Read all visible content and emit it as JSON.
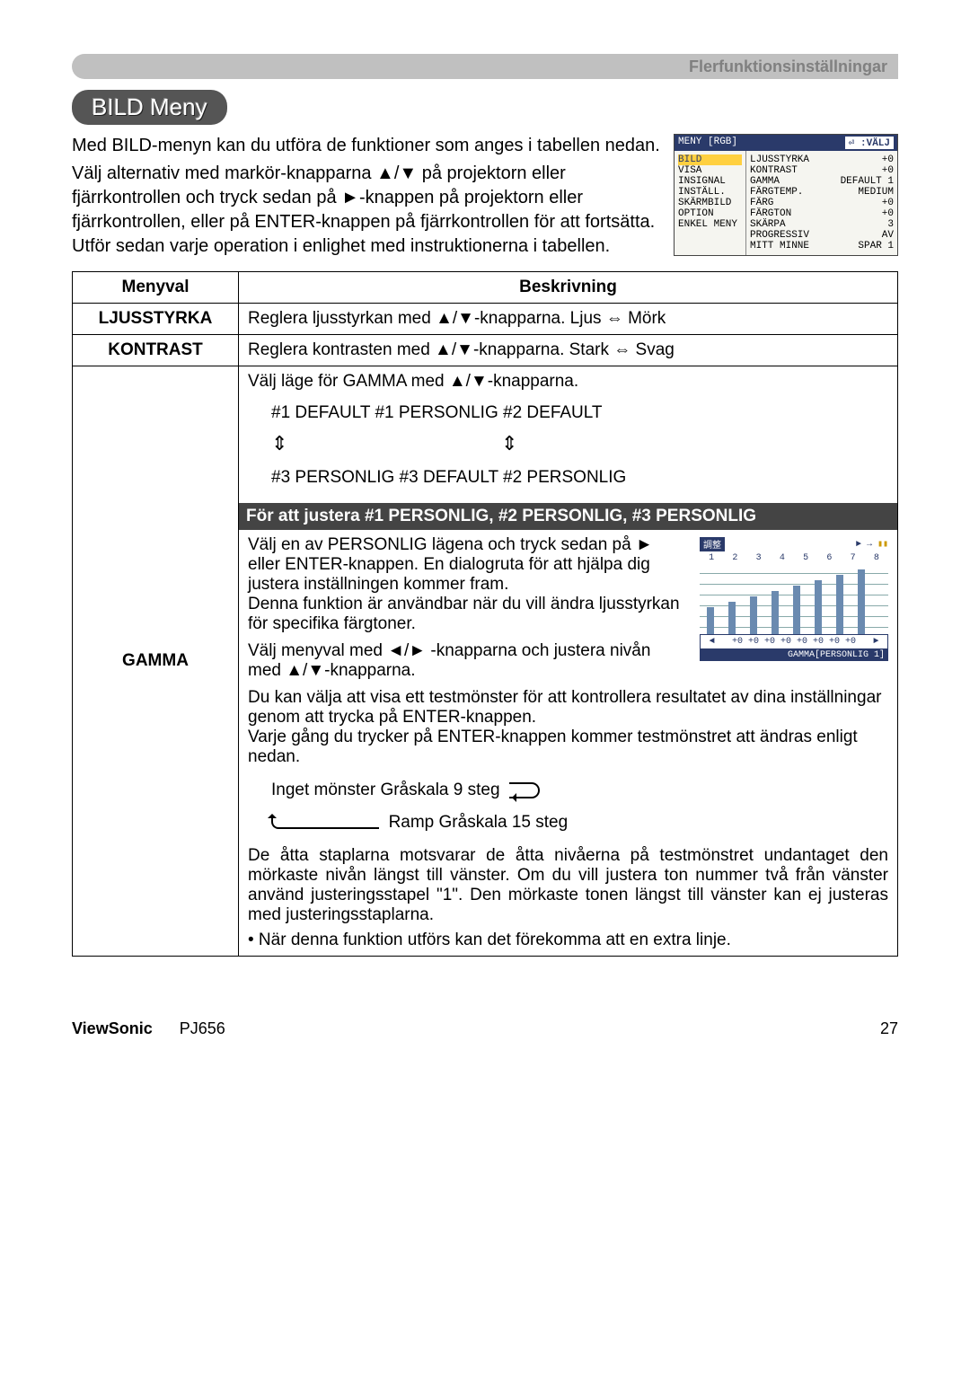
{
  "header": {
    "section": "Flerfunktionsinställningar"
  },
  "title": "BILD Meny",
  "intro": {
    "p1": "Med BILD-menyn kan du utföra de funktioner som anges i tabellen nedan.",
    "p2": "Välj alternativ med markör-knapparna ▲/▼ på projektorn eller fjärrkontrollen och tryck sedan på ►-knappen på projektorn eller fjärrkontrollen, eller på ENTER-knappen på fjärrkontrollen för att fortsätta. Utför sedan varje operation i enlighet med instruktionerna i tabellen."
  },
  "mini_menu": {
    "header_left": "MENY [RGB]",
    "header_right": "⏎ :VÄLJ",
    "left": [
      "BILD",
      "VISA",
      "INSIGNAL",
      "INSTÄLL.",
      "SKÄRMBILD",
      "OPTION",
      "ENKEL MENY"
    ],
    "right": [
      {
        "k": "LJUSSTYRKA",
        "v": "+0"
      },
      {
        "k": "KONTRAST",
        "v": "+0"
      },
      {
        "k": "GAMMA",
        "v": "DEFAULT 1"
      },
      {
        "k": "FÄRGTEMP.",
        "v": "MEDIUM"
      },
      {
        "k": "FÄRG",
        "v": "+0"
      },
      {
        "k": "FÄRGTON",
        "v": "+0"
      },
      {
        "k": "SKÄRPA",
        "v": "3"
      },
      {
        "k": "PROGRESSIV",
        "v": "AV"
      },
      {
        "k": "MITT MINNE",
        "v": "SPAR 1"
      }
    ]
  },
  "table": {
    "headers": {
      "col1": "Menyval",
      "col2": "Beskrivning"
    },
    "rows": {
      "ljusstyrka": {
        "name": "LJUSSTYRKA",
        "desc": "Reglera ljusstyrkan med ▲/▼-knapparna. Ljus ⇔ Mörk"
      },
      "kontrast": {
        "name": "KONTRAST",
        "desc": "Reglera kontrasten med ▲/▼-knapparna. Stark ⇔ Svag"
      },
      "gamma": {
        "name": "GAMMA",
        "line1": "Välj läge för GAMMA med ▲/▼-knapparna.",
        "cycle_top": "#1 DEFAULT     #1 PERSONLIG     #2 DEFAULT",
        "cycle_bottom": "#3 PERSONLIG    #3 DEFAULT    #2 PERSONLIG",
        "band": "För att justera #1 PERSONLIG, #2 PERSONLIG, #3 PERSONLIG",
        "p_dialog": "Välj en av PERSONLIG lägena och tryck sedan på ► eller ENTER-knappen. En dialogruta för att hjälpa dig justera inställningen kommer fram.\nDenna funktion är användbar när du vill ändra ljusstyrkan för specifika färgtoner.",
        "p_nav": "Välj menyval med ◄/► -knapparna och justera nivån med ▲/▼-knapparna.",
        "p_test": "Du kan välja att visa ett testmönster för att kontrollera resultatet av dina inställningar genom att trycka på ENTER-knappen.\nVarje gång du trycker på ENTER-knappen kommer testmönstret att ändras enligt nedan.",
        "pattern_top": "Inget mönster     Gråskala 9 steg",
        "pattern_bottom": "Ramp    Gråskala 15 steg",
        "p_bars": "De åtta staplarna motsvarar de åtta nivåerna på testmönstret undantaget den mörkaste nivån längst till vänster. Om du vill justera ton nummer två från vänster använd justeringsstapel \"1\". Den mörkaste tonen längst till vänster kan ej justeras med justeringsstaplarna.",
        "p_note": "• När denna funktion utförs kan det förekomma att en extra linje."
      }
    }
  },
  "histogram": {
    "title": "調整",
    "nums": [
      "1",
      "2",
      "3",
      "4",
      "5",
      "6",
      "7",
      "8"
    ],
    "heights": [
      30,
      36,
      42,
      48,
      54,
      60,
      66,
      72
    ],
    "vals": [
      "+0",
      "+0",
      "+0",
      "+0",
      "+0",
      "+0",
      "+0",
      "+0"
    ],
    "footer": "GAMMA[PERSONLIG 1]",
    "arrow_l": "◄",
    "arrow_r": "►",
    "bar_color": "#6a8ab0"
  },
  "footer": {
    "brand": "ViewSonic",
    "model": "PJ656",
    "page": "27"
  }
}
